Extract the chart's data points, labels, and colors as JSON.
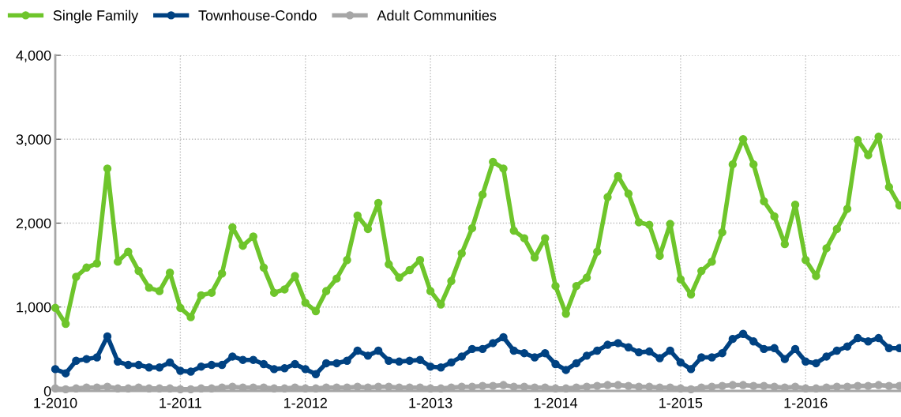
{
  "chart_data": {
    "type": "line",
    "categories": [
      "1-2010",
      null,
      null,
      null,
      null,
      null,
      null,
      null,
      null,
      null,
      null,
      null,
      "1-2011",
      null,
      null,
      null,
      null,
      null,
      null,
      null,
      null,
      null,
      null,
      null,
      "1-2012",
      null,
      null,
      null,
      null,
      null,
      null,
      null,
      null,
      null,
      null,
      null,
      "1-2013",
      null,
      null,
      null,
      null,
      null,
      null,
      null,
      null,
      null,
      null,
      null,
      "1-2014",
      null,
      null,
      null,
      null,
      null,
      null,
      null,
      null,
      null,
      null,
      null,
      "1-2015",
      null,
      null,
      null,
      null,
      null,
      null,
      null,
      null,
      null,
      null,
      null,
      "1-2016",
      null,
      null,
      null,
      null,
      null,
      null,
      null,
      null,
      null
    ],
    "series": [
      {
        "name": "Single Family",
        "color": "#6ec52b",
        "values": [
          990,
          800,
          1360,
          1470,
          1520,
          2650,
          1540,
          1660,
          1430,
          1230,
          1190,
          1410,
          990,
          880,
          1140,
          1170,
          1400,
          1950,
          1730,
          1840,
          1470,
          1170,
          1210,
          1370,
          1050,
          950,
          1190,
          1340,
          1560,
          2090,
          1930,
          2240,
          1510,
          1350,
          1440,
          1560,
          1190,
          1030,
          1310,
          1640,
          1940,
          2340,
          2730,
          2650,
          1910,
          1820,
          1590,
          1820,
          1250,
          920,
          1250,
          1350,
          1660,
          2310,
          2560,
          2350,
          2010,
          1980,
          1610,
          1990,
          1330,
          1150,
          1430,
          1540,
          1890,
          2700,
          3000,
          2700,
          2260,
          2080,
          1750,
          2220,
          1560,
          1370,
          1700,
          1930,
          2170,
          2990,
          2810,
          3030,
          2430,
          2210
        ]
      },
      {
        "name": "Townhouse-Condo",
        "color": "#004282",
        "values": [
          260,
          210,
          360,
          380,
          400,
          650,
          350,
          310,
          310,
          280,
          280,
          340,
          240,
          230,
          290,
          310,
          310,
          410,
          370,
          370,
          320,
          260,
          270,
          320,
          260,
          200,
          330,
          330,
          360,
          480,
          420,
          480,
          360,
          350,
          360,
          370,
          290,
          280,
          340,
          410,
          500,
          500,
          570,
          640,
          480,
          450,
          400,
          450,
          320,
          250,
          330,
          420,
          480,
          550,
          570,
          520,
          460,
          470,
          390,
          480,
          340,
          260,
          400,
          400,
          450,
          620,
          680,
          590,
          500,
          510,
          380,
          500,
          350,
          330,
          410,
          480,
          530,
          630,
          590,
          630,
          510,
          510
        ]
      },
      {
        "name": "Adult Communities",
        "color": "#a6a6a6",
        "values": [
          30,
          20,
          30,
          40,
          40,
          50,
          30,
          30,
          40,
          30,
          30,
          30,
          20,
          20,
          30,
          30,
          40,
          50,
          40,
          40,
          40,
          30,
          30,
          40,
          30,
          30,
          40,
          40,
          40,
          50,
          40,
          50,
          50,
          40,
          40,
          40,
          30,
          30,
          40,
          50,
          50,
          60,
          60,
          70,
          50,
          50,
          40,
          40,
          30,
          30,
          40,
          50,
          60,
          70,
          70,
          60,
          50,
          50,
          40,
          40,
          30,
          20,
          40,
          50,
          60,
          70,
          70,
          60,
          60,
          50,
          40,
          50,
          30,
          30,
          40,
          50,
          50,
          60,
          60,
          70,
          60,
          60
        ]
      }
    ],
    "ylim": [
      0,
      4000
    ],
    "yticks": [
      {
        "value": 0,
        "label": "0"
      },
      {
        "value": 1000,
        "label": "1,000"
      },
      {
        "value": 2000,
        "label": "2,000"
      },
      {
        "value": 3000,
        "label": "3,000"
      },
      {
        "value": 4000,
        "label": "4,000"
      }
    ],
    "grid": true,
    "legend": "top left",
    "marker": "circle",
    "line_style": "solid"
  }
}
